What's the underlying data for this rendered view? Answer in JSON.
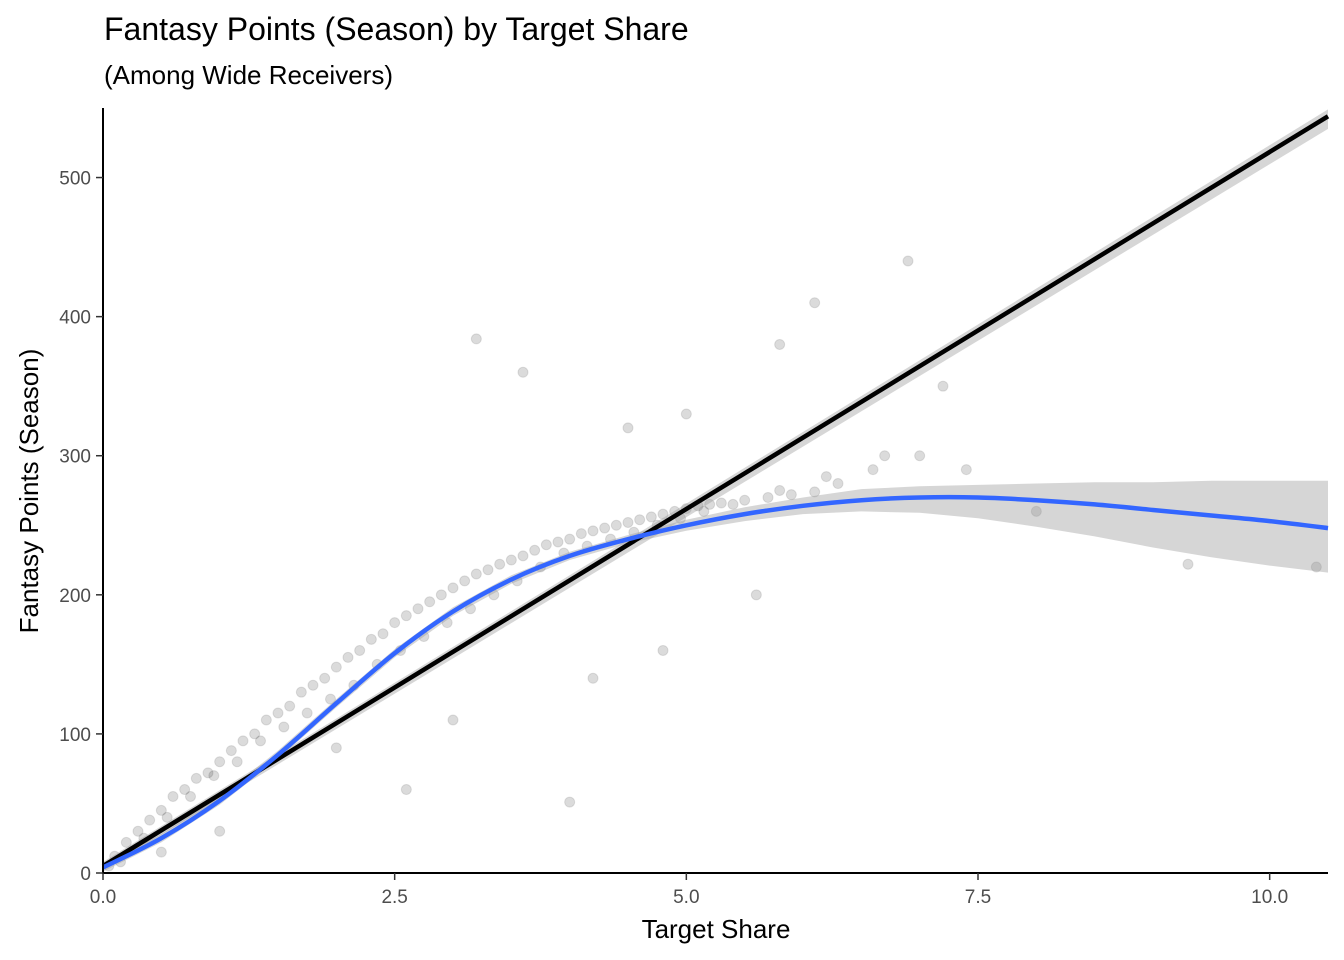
{
  "chart_data": {
    "type": "scatter",
    "title": "Fantasy Points (Season) by Target Share",
    "subtitle": "(Among Wide Receivers)",
    "xlabel": "Target Share",
    "ylabel": "Fantasy Points (Season)",
    "xlim": [
      0,
      10.5
    ],
    "ylim": [
      0,
      550
    ],
    "x_ticks": [
      0,
      2.5,
      5,
      7.5,
      10
    ],
    "x_tick_labels": [
      "0.0",
      "2.5",
      "5.0",
      "7.5",
      "10.0"
    ],
    "y_ticks": [
      0,
      100,
      200,
      300,
      400,
      500
    ],
    "y_tick_labels": [
      "0",
      "100",
      "200",
      "300",
      "400",
      "500"
    ],
    "grid": false,
    "legend": "none",
    "colors": {
      "points": "#000000",
      "linear_fit": "#000000",
      "smooth_fit": "#3366ff",
      "confidence_band": "#999999"
    },
    "point_opacity": 0.07,
    "series": [
      {
        "kind": "points",
        "x": [
          0.05,
          0.1,
          0.2,
          0.3,
          0.4,
          0.5,
          0.6,
          0.7,
          0.8,
          0.9,
          1.0,
          1.1,
          1.2,
          1.3,
          1.4,
          1.5,
          1.6,
          1.7,
          1.8,
          1.9,
          2.0,
          2.1,
          2.2,
          2.3,
          2.4,
          2.5,
          2.6,
          2.7,
          2.8,
          2.9,
          3.0,
          3.1,
          3.2,
          3.3,
          3.4,
          3.5,
          3.6,
          3.7,
          3.8,
          3.9,
          4.0,
          4.1,
          4.2,
          4.3,
          4.4,
          4.5,
          4.6,
          4.7,
          4.8,
          4.9,
          5.0,
          5.1,
          5.2,
          5.3,
          5.5,
          5.7,
          5.9,
          6.1,
          6.3,
          6.6,
          7.0,
          7.2,
          7.4,
          8.0,
          9.3,
          10.4,
          0.15,
          0.35,
          0.55,
          0.75,
          0.95,
          1.15,
          1.35,
          1.55,
          1.75,
          1.95,
          2.15,
          2.35,
          2.55,
          2.75,
          2.95,
          3.15,
          3.35,
          3.55,
          3.75,
          3.95,
          4.15,
          4.35,
          4.55,
          4.75,
          4.95,
          5.15,
          5.4,
          5.8,
          6.2,
          6.7,
          3.2,
          3.6,
          4.5,
          5.0,
          5.8,
          6.1,
          6.9,
          4.0,
          2.6,
          1.0,
          0.5,
          2.0,
          3.0,
          4.2,
          4.8,
          5.6
        ],
        "y": [
          5,
          12,
          22,
          30,
          38,
          45,
          55,
          60,
          68,
          72,
          80,
          88,
          95,
          100,
          110,
          115,
          120,
          130,
          135,
          140,
          148,
          155,
          160,
          168,
          172,
          180,
          185,
          190,
          195,
          200,
          205,
          210,
          215,
          218,
          222,
          225,
          228,
          232,
          236,
          238,
          240,
          244,
          246,
          248,
          250,
          252,
          254,
          256,
          258,
          260,
          262,
          264,
          265,
          266,
          268,
          270,
          272,
          274,
          280,
          290,
          300,
          350,
          290,
          260,
          222,
          220,
          8,
          25,
          40,
          55,
          70,
          80,
          95,
          105,
          115,
          125,
          135,
          150,
          160,
          170,
          180,
          190,
          200,
          210,
          220,
          230,
          235,
          240,
          245,
          250,
          255,
          260,
          265,
          275,
          285,
          300,
          384,
          360,
          320,
          330,
          380,
          410,
          440,
          51,
          60,
          30,
          15,
          90,
          110,
          140,
          160,
          200
        ],
        "name": ""
      },
      {
        "kind": "linear_fit",
        "x": [
          0,
          10.5
        ],
        "y": [
          5,
          544
        ],
        "band_lower": [
          2,
          535
        ],
        "band_upper": [
          8,
          549
        ],
        "name": ""
      },
      {
        "kind": "smooth_fit",
        "x": [
          0,
          0.5,
          1.0,
          1.5,
          2.0,
          2.5,
          3.0,
          3.5,
          4.0,
          4.5,
          5.0,
          5.5,
          6.0,
          6.5,
          7.0,
          7.5,
          8.0,
          8.5,
          9.0,
          9.5,
          10.0,
          10.5
        ],
        "y": [
          4,
          25,
          52,
          85,
          122,
          158,
          188,
          211,
          228,
          240,
          250,
          258,
          264,
          268,
          270,
          270,
          268,
          265,
          261,
          257,
          253,
          248
        ],
        "band_lower": [
          1,
          22,
          49,
          82,
          119,
          155,
          185,
          208,
          225,
          237,
          246,
          253,
          258,
          260,
          259,
          255,
          249,
          242,
          234,
          227,
          221,
          216
        ],
        "band_upper": [
          7,
          28,
          55,
          88,
          125,
          161,
          191,
          214,
          231,
          243,
          254,
          263,
          270,
          276,
          278,
          279,
          280,
          281,
          281,
          282,
          282,
          282
        ],
        "name": ""
      }
    ]
  }
}
